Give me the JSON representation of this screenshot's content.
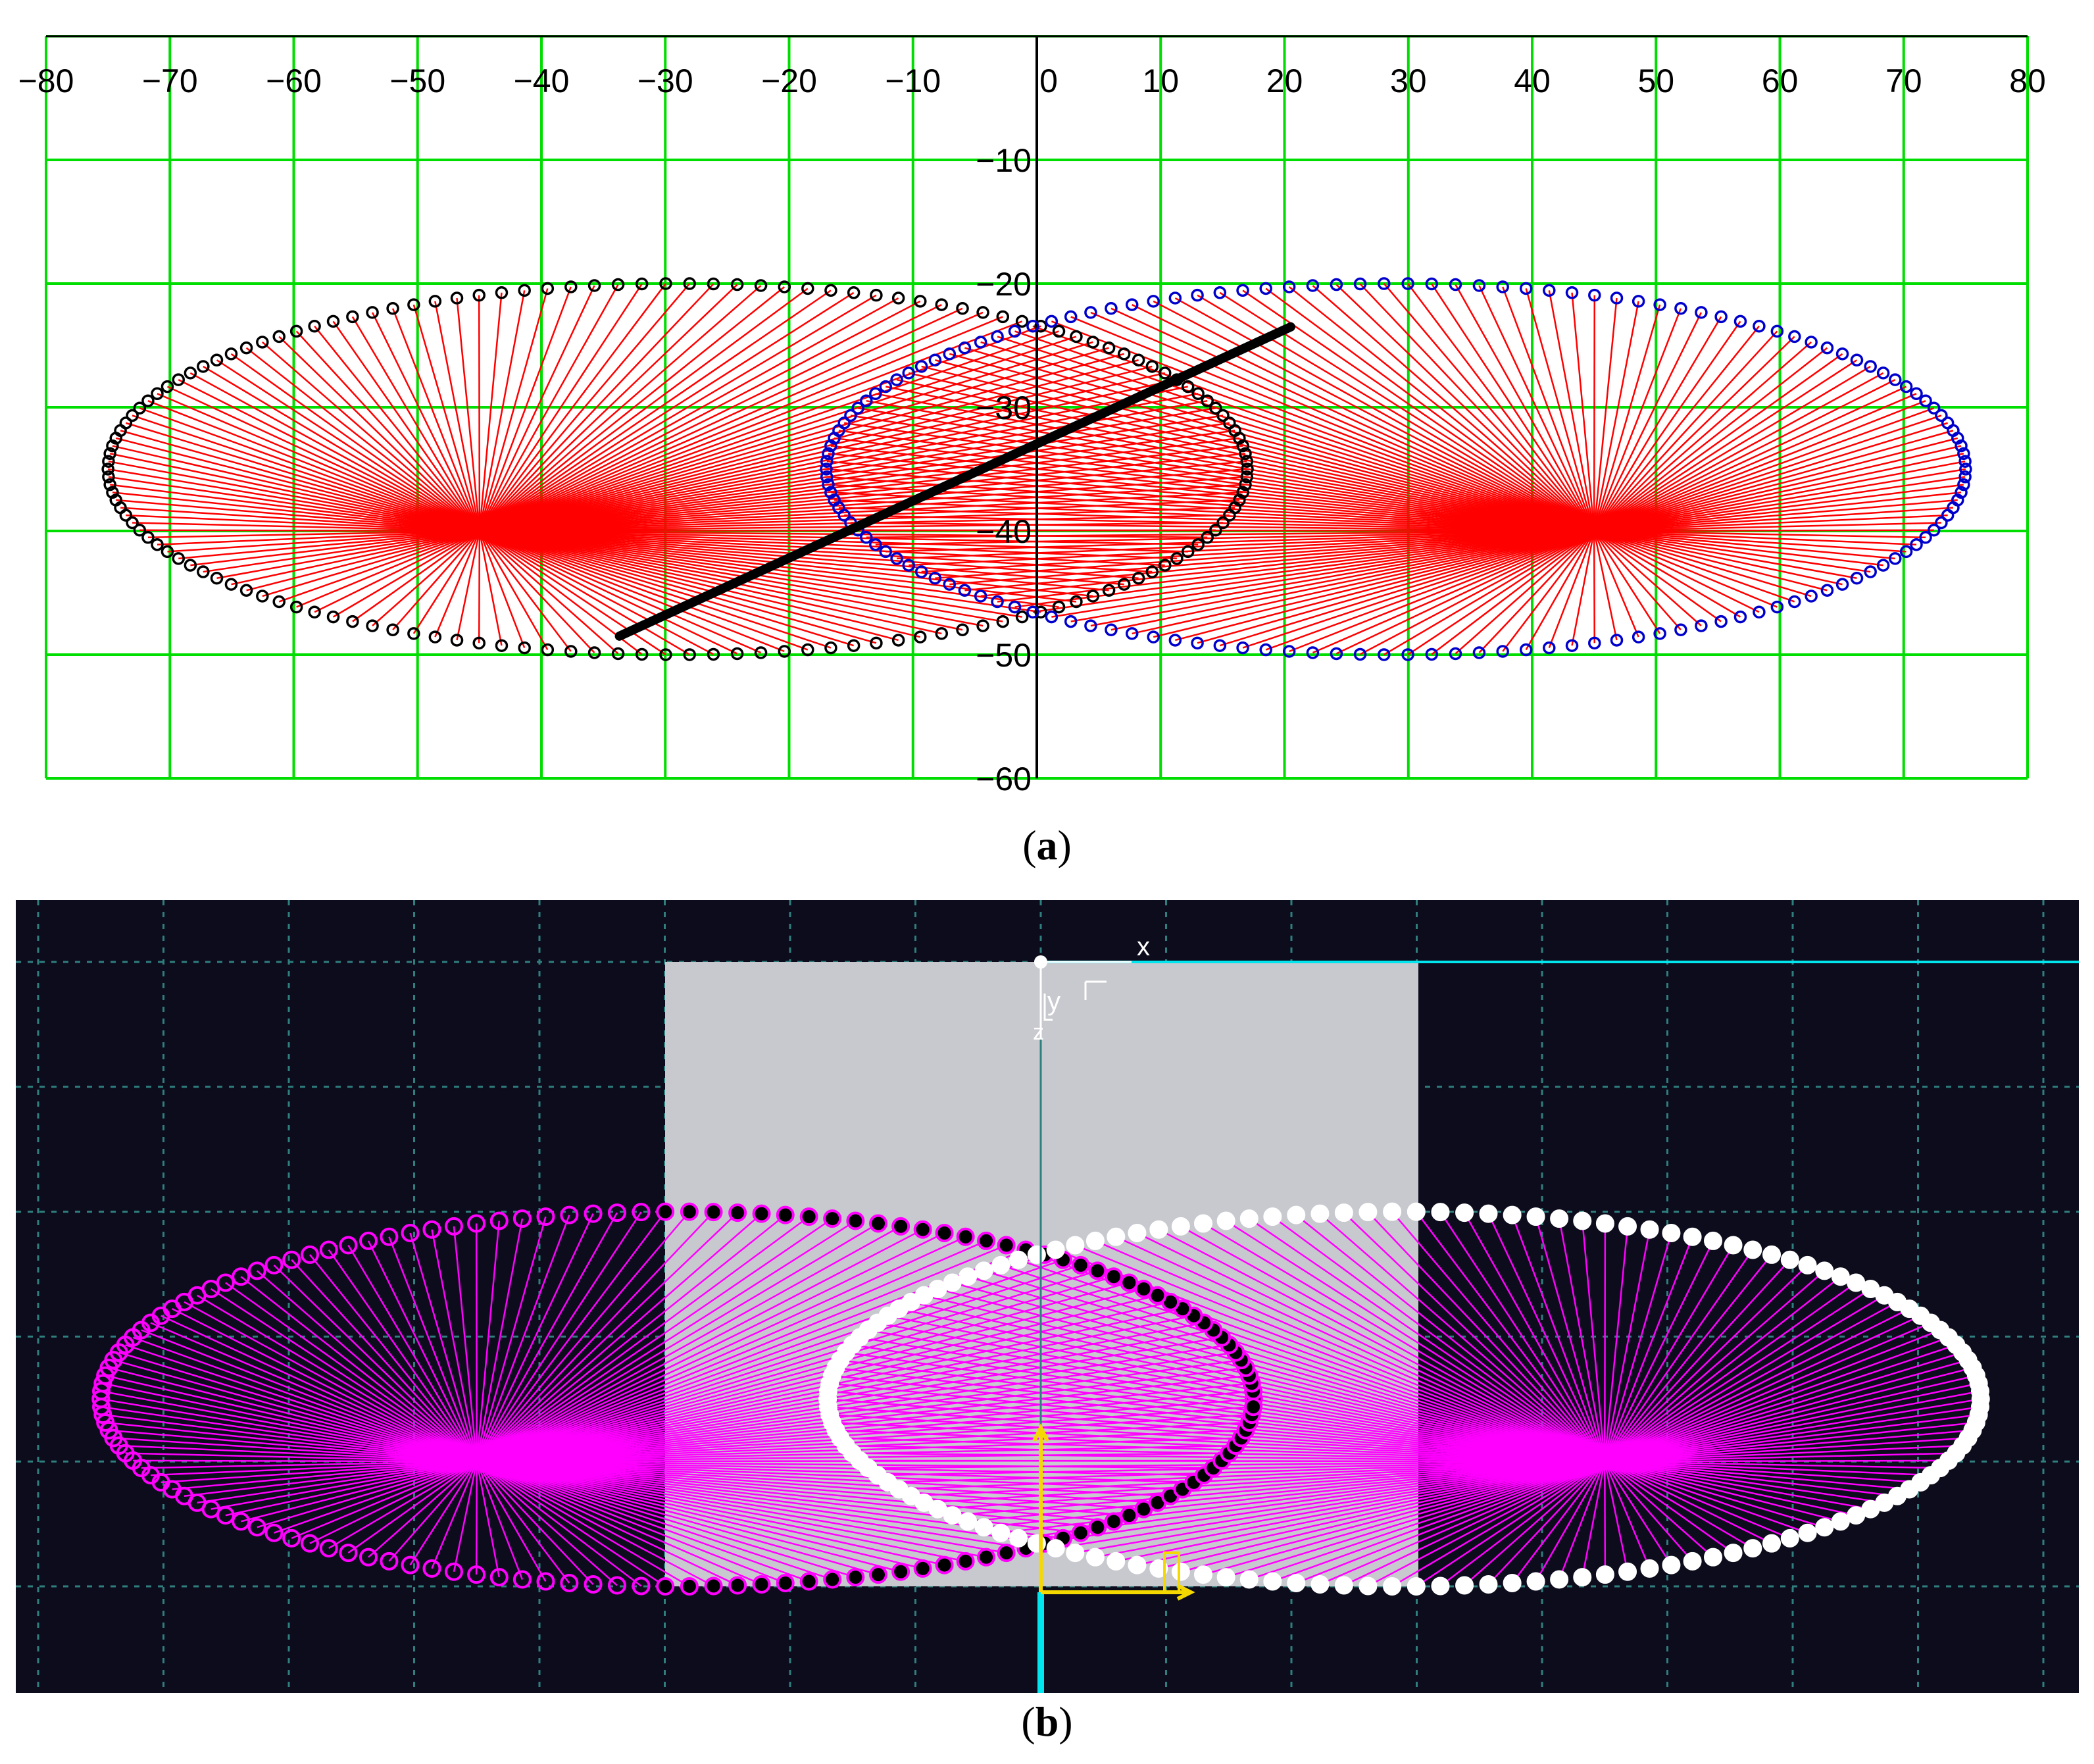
{
  "captions": {
    "a_letter": "a",
    "b_letter": "b"
  },
  "colors": {
    "grid_a": "#00dd00",
    "rays_a": "#ff0000",
    "left_circles_a": "#000000",
    "right_circles_a": "#0000cc",
    "segment_a": "#000000",
    "bg_b": "#0c0c1c",
    "grid_b": "#2f7f7f",
    "plate_b": "#c8c9ce",
    "rays_b": "#ff00ff",
    "cyan_b": "#00e5ee",
    "yellow_b": "#f5d800",
    "white_b": "#ffffff"
  },
  "chart_data": [
    {
      "type": "scatter",
      "panel": "a",
      "title": "",
      "x_ticks": [
        "−80",
        "−70",
        "−60",
        "−50",
        "−40",
        "−30",
        "−20",
        "−10",
        "0",
        "10",
        "20",
        "30",
        "40",
        "50",
        "60",
        "70",
        "80"
      ],
      "y_ticks": [
        "−10",
        "−20",
        "−30",
        "−40",
        "−50",
        "−60"
      ],
      "xlim": [
        -80,
        80
      ],
      "ylim": [
        -60,
        0
      ],
      "grid": true,
      "loop_left": {
        "x_min": -75,
        "x_max": 17,
        "y_top": -20,
        "y_bottom": -50,
        "convergence": [
          -45,
          -40
        ]
      },
      "loop_right": {
        "x_min": -17,
        "x_max": 75,
        "y_top": -20,
        "y_bottom": -50,
        "convergence": [
          45,
          -40
        ]
      },
      "segment": {
        "x1": -33.7,
        "y1": -48.5,
        "x2": 20.5,
        "y2": -23.5
      },
      "rays": "lines from each loop point to convergence centres"
    },
    {
      "type": "scatter",
      "panel": "b",
      "title": "",
      "axis_labels": {
        "x": "x",
        "y": "y",
        "z": "z"
      },
      "loop_left": {
        "x_min": -75,
        "x_max": 17,
        "y_top": -20,
        "y_bottom": -50,
        "convergence": [
          -45,
          -40
        ]
      },
      "loop_right": {
        "x_min": -17,
        "x_max": 75,
        "y_top": -20,
        "y_bottom": -50,
        "convergence": [
          45,
          -40
        ]
      },
      "plate": {
        "x_min": -30,
        "x_max": 30,
        "y_top": 0,
        "y_bottom": -50
      },
      "grid": true
    }
  ]
}
